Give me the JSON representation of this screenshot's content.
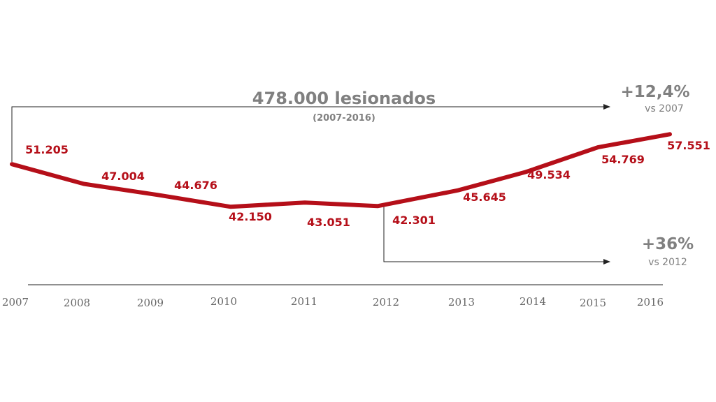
{
  "chart_data": {
    "type": "line",
    "categories": [
      "2007",
      "2008",
      "2009",
      "2010",
      "2011",
      "2012",
      "2013",
      "2014",
      "2015",
      "2016"
    ],
    "values": [
      51205,
      47004,
      44676,
      42150,
      43051,
      42301,
      45645,
      49534,
      54769,
      57551
    ],
    "data_labels": [
      "51.205",
      "47.004",
      "44.676",
      "42.150",
      "43.051",
      "42.301",
      "45.645",
      "49.534",
      "54.769",
      "57.551"
    ],
    "ylim": [
      30000,
      65000
    ],
    "grid": false,
    "line_color": "#b50f19"
  },
  "annotations": {
    "total_value": "478.000 lesionados",
    "total_period": "(2007-2016)",
    "change_since_2007": "+12,4%",
    "change_since_2007_ref": "vs 2007",
    "change_since_2012": "+36%",
    "change_since_2012_ref": "vs 2012"
  }
}
